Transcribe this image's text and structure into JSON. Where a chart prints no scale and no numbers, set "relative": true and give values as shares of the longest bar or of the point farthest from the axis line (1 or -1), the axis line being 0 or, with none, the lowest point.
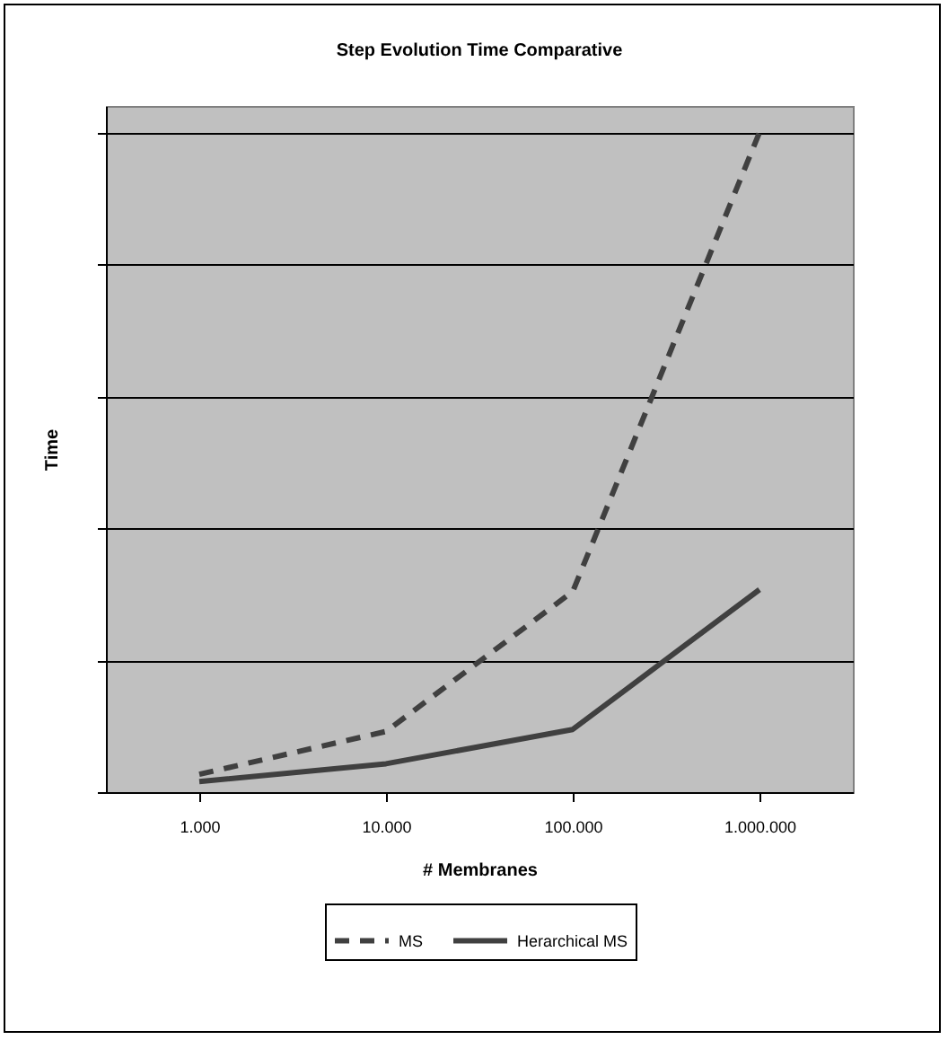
{
  "chart_data": {
    "type": "line",
    "title": "Step Evolution Time Comparative",
    "xlabel": "# Membranes",
    "ylabel": "Time",
    "categories": [
      "1.000",
      "10.000",
      "100.000",
      "1.000.000"
    ],
    "relative": true,
    "grid": "y",
    "legend": "bottom",
    "marker": "none",
    "series": [
      {
        "name": "MS",
        "color": "#404040",
        "line_style": "dashed",
        "values": [
          0.027,
          0.092,
          0.304,
          1
        ]
      },
      {
        "name": "Herarchical MS",
        "color": "#404040",
        "line_style": "solid",
        "values": [
          0.016,
          0.043,
          0.095,
          0.307
        ]
      }
    ]
  }
}
